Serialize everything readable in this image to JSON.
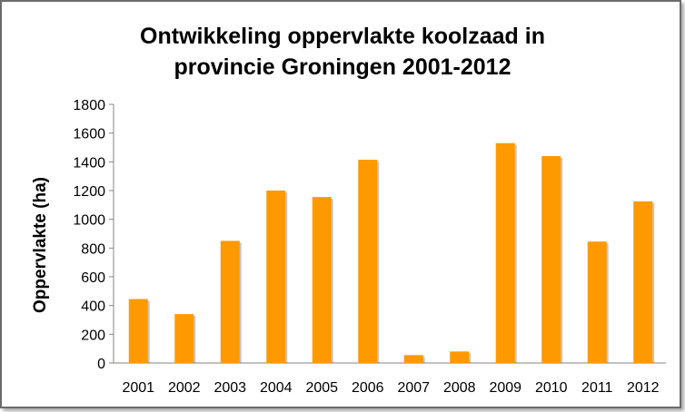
{
  "chart_data": {
    "type": "bar",
    "title_lines": [
      "Ontwikkeling oppervlakte koolzaad in",
      "provincie Groningen 2001-2012"
    ],
    "xlabel": "",
    "ylabel": "Oppervlakte (ha)",
    "categories": [
      "2001",
      "2002",
      "2003",
      "2004",
      "2005",
      "2006",
      "2007",
      "2008",
      "2009",
      "2010",
      "2011",
      "2012"
    ],
    "values": [
      445,
      340,
      850,
      1200,
      1155,
      1415,
      55,
      80,
      1530,
      1440,
      845,
      1125
    ],
    "ylim": [
      0,
      1800
    ],
    "yticks": [
      0,
      200,
      400,
      600,
      800,
      1000,
      1200,
      1400,
      1600,
      1800
    ],
    "bar_color": "#ff9900",
    "grid": false,
    "legend": "none"
  }
}
